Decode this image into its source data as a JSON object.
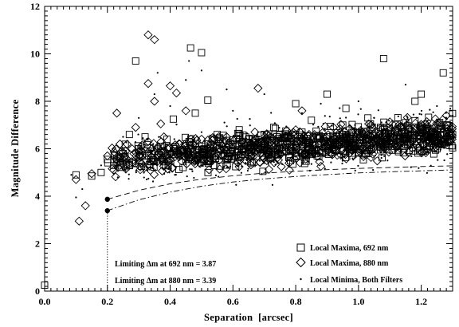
{
  "chart_data": {
    "type": "scatter",
    "xlabel": "Separation  [arcsec]",
    "ylabel": "Magnitude Difference",
    "xlim": [
      0.0,
      1.3
    ],
    "ylim": [
      0,
      12
    ],
    "xticks": [
      "0.0",
      "0.2",
      "0.4",
      "0.6",
      "0.8",
      "1.0",
      "1.2"
    ],
    "yticks": [
      "0",
      "2",
      "4",
      "6",
      "8",
      "10",
      "12"
    ],
    "grid": false,
    "legend_position": "bottom-right",
    "legend": [
      {
        "label": "Local Maxima, 692 nm",
        "marker": "square"
      },
      {
        "label": "Local Maxima, 880 nm",
        "marker": "diamond"
      },
      {
        "label": "Local Minima, Both Filters",
        "marker": "dot"
      }
    ],
    "annotations": [
      {
        "prefix": "Limiting ",
        "symbol": "Δ",
        "suffix": "m at 692 nm = 3.87"
      },
      {
        "prefix": "Limiting ",
        "symbol": "Δ",
        "suffix": "m at 880 nm = 3.39"
      }
    ],
    "series": [
      {
        "label": "Local Maxima, 692 nm",
        "marker": "square",
        "points": [
          [
            0.0,
            0.25
          ],
          [
            0.1,
            4.9
          ],
          [
            0.15,
            4.85
          ],
          [
            0.18,
            5.0
          ],
          [
            0.2,
            5.55
          ],
          [
            0.22,
            5.3
          ],
          [
            0.25,
            5.8
          ],
          [
            0.27,
            6.6
          ],
          [
            0.28,
            5.4
          ],
          [
            0.3,
            6.0
          ],
          [
            0.32,
            6.5
          ],
          [
            0.34,
            5.8
          ],
          [
            0.35,
            5.9
          ],
          [
            0.37,
            6.1
          ],
          [
            0.39,
            6.4
          ],
          [
            0.41,
            6.0
          ],
          [
            0.44,
            5.9
          ],
          [
            0.46,
            6.3
          ],
          [
            0.5,
            5.9
          ],
          [
            0.52,
            6.2
          ],
          [
            0.55,
            6.6
          ],
          [
            0.6,
            6.2
          ],
          [
            0.62,
            6.8
          ],
          [
            0.65,
            6.4
          ],
          [
            0.7,
            6.6
          ],
          [
            0.73,
            6.9
          ],
          [
            0.78,
            6.3
          ],
          [
            0.82,
            6.7
          ],
          [
            0.85,
            7.2
          ],
          [
            0.9,
            6.5
          ],
          [
            0.95,
            7.0
          ],
          [
            1.0,
            6.6
          ],
          [
            1.03,
            7.3
          ],
          [
            1.07,
            6.9
          ],
          [
            1.1,
            6.5
          ],
          [
            1.15,
            7.1
          ],
          [
            1.2,
            6.8
          ],
          [
            1.25,
            6.4
          ],
          [
            1.28,
            7.0
          ],
          [
            1.3,
            6.6
          ],
          [
            0.29,
            9.7
          ],
          [
            0.465,
            10.25
          ],
          [
            0.5,
            10.05
          ],
          [
            0.52,
            8.05
          ],
          [
            0.48,
            7.5
          ],
          [
            0.41,
            7.25
          ],
          [
            0.9,
            8.3
          ],
          [
            0.8,
            7.9
          ],
          [
            1.08,
            9.8
          ],
          [
            1.27,
            9.2
          ],
          [
            1.2,
            8.3
          ],
          [
            1.18,
            8.0
          ],
          [
            0.96,
            7.7
          ]
        ]
      },
      {
        "label": "Local Maxima, 880 nm",
        "marker": "diamond",
        "points": [
          [
            0.1,
            4.7
          ],
          [
            0.11,
            2.95
          ],
          [
            0.13,
            3.6
          ],
          [
            0.15,
            4.95
          ],
          [
            0.2,
            5.7
          ],
          [
            0.22,
            5.1
          ],
          [
            0.24,
            6.2
          ],
          [
            0.26,
            5.6
          ],
          [
            0.29,
            6.9
          ],
          [
            0.31,
            5.9
          ],
          [
            0.33,
            6.3
          ],
          [
            0.36,
            6.0
          ],
          [
            0.38,
            6.5
          ],
          [
            0.4,
            5.8
          ],
          [
            0.43,
            6.2
          ],
          [
            0.47,
            6.0
          ],
          [
            0.5,
            6.4
          ],
          [
            0.54,
            6.1
          ],
          [
            0.58,
            6.5
          ],
          [
            0.63,
            6.3
          ],
          [
            0.67,
            6.7
          ],
          [
            0.72,
            6.5
          ],
          [
            0.8,
            6.8
          ],
          [
            0.86,
            6.6
          ],
          [
            0.92,
            6.9
          ],
          [
            0.98,
            6.7
          ],
          [
            1.04,
            7.0
          ],
          [
            1.1,
            6.8
          ],
          [
            1.16,
            6.6
          ],
          [
            1.22,
            6.9
          ],
          [
            1.28,
            6.7
          ],
          [
            0.33,
            10.8
          ],
          [
            0.35,
            10.6
          ],
          [
            0.33,
            8.75
          ],
          [
            0.35,
            8.0
          ],
          [
            0.4,
            8.65
          ],
          [
            0.42,
            8.35
          ],
          [
            0.45,
            7.6
          ],
          [
            0.37,
            7.05
          ],
          [
            0.68,
            8.55
          ],
          [
            0.78,
            5.1
          ],
          [
            0.82,
            7.6
          ],
          [
            1.28,
            7.4
          ],
          [
            0.23,
            7.5
          ]
        ]
      },
      {
        "label": "Local Minima, Both Filters",
        "marker": "dot",
        "points": [
          [
            0.085,
            4.9
          ],
          [
            0.1,
            3.95
          ],
          [
            0.12,
            4.3
          ],
          [
            0.18,
            5.3
          ],
          [
            0.22,
            4.95
          ],
          [
            0.25,
            6.5
          ],
          [
            0.3,
            7.3
          ],
          [
            0.35,
            8.3
          ],
          [
            0.36,
            9.2
          ],
          [
            0.4,
            7.8
          ],
          [
            0.45,
            8.9
          ],
          [
            0.46,
            9.7
          ],
          [
            0.5,
            9.3
          ],
          [
            0.58,
            8.5
          ],
          [
            0.6,
            7.6
          ],
          [
            0.7,
            8.3
          ],
          [
            0.82,
            7.5
          ],
          [
            0.88,
            7.9
          ],
          [
            1.0,
            8.0
          ],
          [
            1.05,
            7.3
          ],
          [
            1.15,
            8.7
          ],
          [
            1.25,
            7.8
          ],
          [
            1.3,
            7.4
          ],
          [
            0.55,
            5.6
          ],
          [
            0.9,
            5.8
          ],
          [
            1.12,
            5.9
          ],
          [
            1.22,
            5.9
          ],
          [
            0.65,
            6.0
          ],
          [
            0.75,
            5.7
          ],
          [
            0.5,
            6.7
          ]
        ]
      }
    ],
    "dense_cloud": {
      "labels": [
        "Local Maxima, 692 nm",
        "Local Maxima, 880 nm",
        "Local Minima, Both Filters"
      ],
      "x_range": [
        0.2,
        1.3
      ],
      "y_center_at_x0_2": 5.5,
      "y_center_at_x1_3": 6.6,
      "y_spread": 0.55
    },
    "limit_curves": [
      {
        "label": "692 nm",
        "style": "dashed",
        "x": [
          0.2,
          0.3,
          0.4,
          0.5,
          0.6,
          0.7,
          0.8,
          0.9,
          1.0,
          1.1,
          1.2,
          1.3
        ],
        "y": [
          3.87,
          4.25,
          4.52,
          4.72,
          4.86,
          4.97,
          5.05,
          5.12,
          5.17,
          5.21,
          5.25,
          5.28
        ]
      },
      {
        "label": "880 nm",
        "style": "dash-dot",
        "x": [
          0.2,
          0.3,
          0.4,
          0.5,
          0.6,
          0.7,
          0.8,
          0.9,
          1.0,
          1.1,
          1.2,
          1.3
        ],
        "y": [
          3.39,
          3.85,
          4.17,
          4.42,
          4.6,
          4.73,
          4.83,
          4.91,
          4.98,
          5.03,
          5.07,
          5.11
        ]
      }
    ],
    "limit_markers": [
      {
        "x": 0.2,
        "y": 3.87
      },
      {
        "x": 0.2,
        "y": 3.39
      }
    ]
  }
}
